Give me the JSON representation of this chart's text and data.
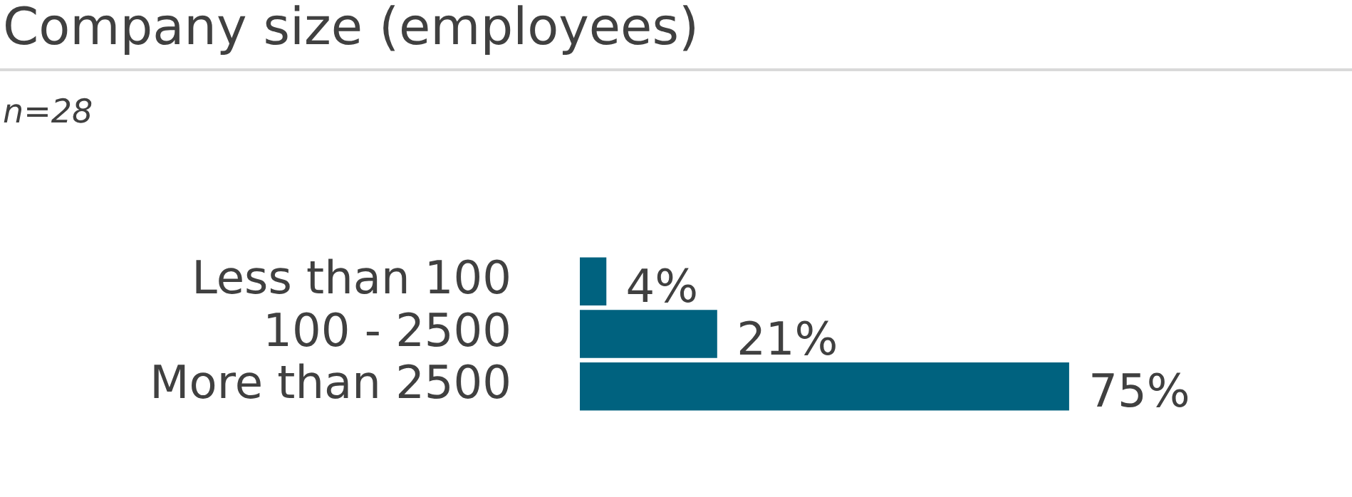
{
  "chart_data": {
    "type": "bar",
    "orientation": "horizontal",
    "title": "Company size (employees)",
    "subtitle": "n=28",
    "categories": [
      "Less than 100",
      "100 - 2500",
      "More than 2500"
    ],
    "values": [
      4,
      21,
      75
    ],
    "value_labels": [
      "4%",
      "21%",
      "75%"
    ],
    "color": "#00627f"
  }
}
